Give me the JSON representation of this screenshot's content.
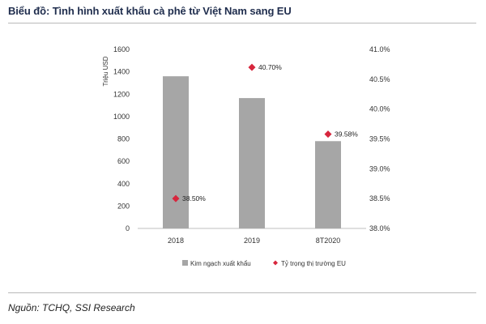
{
  "header": {
    "title": "Biểu đồ: Tình hình xuất khẩu cà phê từ Việt Nam sang EU"
  },
  "footer": {
    "source": "Nguồn: TCHQ, SSI Research"
  },
  "chart_data": {
    "type": "bar",
    "categories": [
      "2018",
      "2019",
      "8T2020"
    ],
    "ylabel": "Triệu USD",
    "ylim": [
      0,
      1600
    ],
    "yticks": [
      "0",
      "200",
      "400",
      "600",
      "800",
      "1000",
      "1200",
      "1400",
      "1600"
    ],
    "y2lim": [
      38.0,
      41.0
    ],
    "y2ticks": [
      "38.0%",
      "38.5%",
      "39.0%",
      "39.5%",
      "40.0%",
      "40.5%",
      "41.0%"
    ],
    "series": [
      {
        "name": "Kim ngạch xuất khẩu",
        "type": "bar",
        "axis": "left",
        "color": "#a6a6a6",
        "values": [
          1360,
          1165,
          780
        ]
      },
      {
        "name": "Tỷ trọng thị trường EU",
        "type": "scatter",
        "axis": "right",
        "color": "#d7263d",
        "values": [
          38.5,
          40.7,
          39.58
        ],
        "labels": [
          "38.50%",
          "40.70%",
          "39.58%"
        ]
      }
    ],
    "legend": "bottom",
    "grid": false
  }
}
